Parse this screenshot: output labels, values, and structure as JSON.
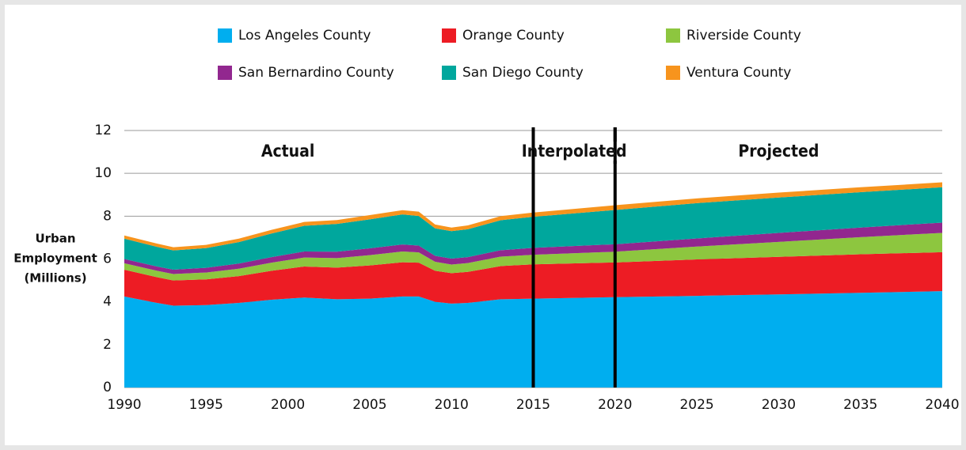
{
  "chart_data": {
    "type": "stacked_area",
    "y_label": [
      "Urban",
      "Employment",
      "(Millions)"
    ],
    "x": [
      1990,
      1992,
      1993,
      1995,
      1997,
      1999,
      2001,
      2003,
      2005,
      2007,
      2008,
      2009,
      2010,
      2011,
      2013,
      2015,
      2020,
      2025,
      2030,
      2035,
      2040
    ],
    "series": [
      {
        "name": "Los Angeles County",
        "color": "#00aeef",
        "values": [
          4.25,
          3.95,
          3.82,
          3.85,
          3.95,
          4.1,
          4.2,
          4.12,
          4.15,
          4.25,
          4.25,
          4.0,
          3.92,
          3.95,
          4.12,
          4.15,
          4.22,
          4.28,
          4.35,
          4.42,
          4.5
        ]
      },
      {
        "name": "Orange County",
        "color": "#ed1c24",
        "values": [
          1.25,
          1.2,
          1.18,
          1.2,
          1.25,
          1.35,
          1.45,
          1.48,
          1.55,
          1.6,
          1.58,
          1.45,
          1.42,
          1.45,
          1.55,
          1.6,
          1.62,
          1.7,
          1.75,
          1.8,
          1.82
        ]
      },
      {
        "name": "Riverside County",
        "color": "#8dc63f",
        "values": [
          0.3,
          0.3,
          0.3,
          0.32,
          0.35,
          0.38,
          0.42,
          0.44,
          0.48,
          0.5,
          0.48,
          0.42,
          0.4,
          0.41,
          0.44,
          0.45,
          0.5,
          0.6,
          0.7,
          0.8,
          0.9
        ]
      },
      {
        "name": "San Bernardino County",
        "color": "#92278f",
        "values": [
          0.2,
          0.2,
          0.2,
          0.22,
          0.24,
          0.26,
          0.28,
          0.3,
          0.32,
          0.33,
          0.32,
          0.28,
          0.28,
          0.28,
          0.3,
          0.32,
          0.35,
          0.38,
          0.42,
          0.45,
          0.48
        ]
      },
      {
        "name": "San Diego County",
        "color": "#00a79d",
        "values": [
          0.95,
          0.92,
          0.9,
          0.92,
          1.0,
          1.1,
          1.2,
          1.3,
          1.35,
          1.4,
          1.38,
          1.28,
          1.28,
          1.3,
          1.4,
          1.45,
          1.6,
          1.65,
          1.65,
          1.65,
          1.65
        ]
      },
      {
        "name": "Ventura County",
        "color": "#f7941d",
        "values": [
          0.15,
          0.15,
          0.15,
          0.15,
          0.16,
          0.17,
          0.18,
          0.18,
          0.2,
          0.2,
          0.2,
          0.18,
          0.17,
          0.18,
          0.19,
          0.2,
          0.22,
          0.22,
          0.23,
          0.23,
          0.23
        ]
      }
    ],
    "xlim": [
      1990,
      2040
    ],
    "xticks": [
      1990,
      1995,
      2000,
      2005,
      2010,
      2015,
      2020,
      2025,
      2030,
      2035,
      2040
    ],
    "ylim": [
      0,
      12
    ],
    "yticks": [
      0,
      2,
      4,
      6,
      8,
      10,
      12
    ],
    "grid": true,
    "dividers": [
      2015,
      2020
    ],
    "annotations": [
      {
        "text": "Actual",
        "x": 2000,
        "y": 11
      },
      {
        "text": "Interpolated",
        "x": 2017.5,
        "y": 11
      },
      {
        "text": "Projected",
        "x": 2030,
        "y": 11
      }
    ],
    "legend": "top"
  }
}
